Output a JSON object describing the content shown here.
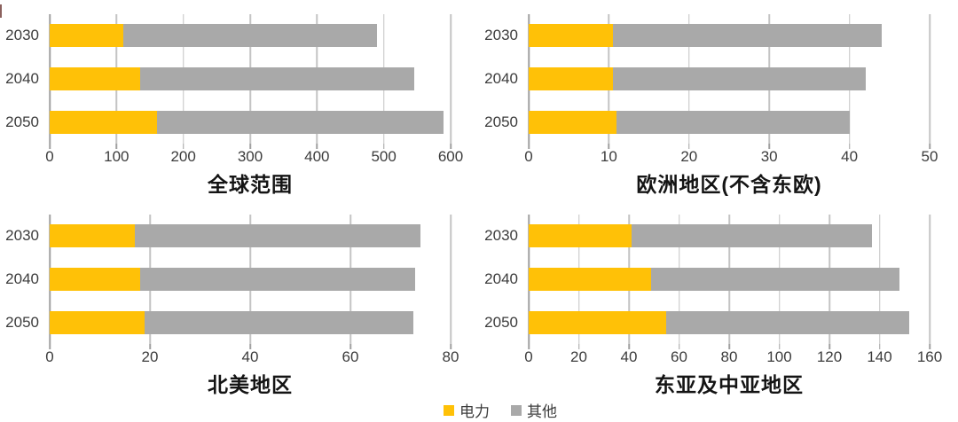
{
  "page": {
    "background": "#ffffff"
  },
  "legend": {
    "position": "bottom-center",
    "items": [
      {
        "id": "electricity",
        "label": "电力",
        "color": "#FFC107"
      },
      {
        "id": "other",
        "label": "其他",
        "color": "#A9A9A9"
      }
    ]
  },
  "chart_data": [
    {
      "type": "bar",
      "orientation": "horizontal",
      "stacked": true,
      "title": "全球范围",
      "categories": [
        "2030",
        "2040",
        "2050"
      ],
      "xlim": [
        0,
        600
      ],
      "xticks": [
        0,
        100,
        200,
        300,
        400,
        500,
        600
      ],
      "grid": true,
      "series": [
        {
          "id": "electricity",
          "name": "电力",
          "color": "#FFC107",
          "values": [
            110,
            135,
            160
          ]
        },
        {
          "id": "other",
          "name": "其他",
          "color": "#A9A9A9",
          "values": [
            380,
            410,
            430
          ]
        }
      ],
      "totals": [
        490,
        545,
        590
      ]
    },
    {
      "type": "bar",
      "orientation": "horizontal",
      "stacked": true,
      "title": "欧洲地区(不含东欧)",
      "categories": [
        "2030",
        "2040",
        "2050"
      ],
      "xlim": [
        0,
        50
      ],
      "xticks": [
        0,
        10,
        20,
        30,
        40,
        50
      ],
      "grid": true,
      "series": [
        {
          "id": "electricity",
          "name": "电力",
          "color": "#FFC107",
          "values": [
            10.5,
            10.5,
            11
          ]
        },
        {
          "id": "other",
          "name": "其他",
          "color": "#A9A9A9",
          "values": [
            33.5,
            31.5,
            29
          ]
        }
      ],
      "totals": [
        44,
        42,
        40
      ]
    },
    {
      "type": "bar",
      "orientation": "horizontal",
      "stacked": true,
      "title": "北美地区",
      "categories": [
        "2030",
        "2040",
        "2050"
      ],
      "xlim": [
        0,
        80
      ],
      "xticks": [
        0,
        20,
        40,
        60,
        80
      ],
      "grid": true,
      "series": [
        {
          "id": "electricity",
          "name": "电力",
          "color": "#FFC107",
          "values": [
            17,
            18,
            19
          ]
        },
        {
          "id": "other",
          "name": "其他",
          "color": "#A9A9A9",
          "values": [
            57,
            55,
            53.5
          ]
        }
      ],
      "totals": [
        74,
        73,
        72.5
      ]
    },
    {
      "type": "bar",
      "orientation": "horizontal",
      "stacked": true,
      "title": "东亚及中亚地区",
      "categories": [
        "2030",
        "2040",
        "2050"
      ],
      "xlim": [
        0,
        160
      ],
      "xticks": [
        0,
        20,
        40,
        60,
        80,
        100,
        120,
        140,
        160
      ],
      "grid": true,
      "series": [
        {
          "id": "electricity",
          "name": "电力",
          "color": "#FFC107",
          "values": [
            41,
            49,
            55
          ]
        },
        {
          "id": "other",
          "name": "其他",
          "color": "#A9A9A9",
          "values": [
            96,
            99,
            97
          ]
        }
      ],
      "totals": [
        137,
        148,
        152
      ]
    }
  ]
}
